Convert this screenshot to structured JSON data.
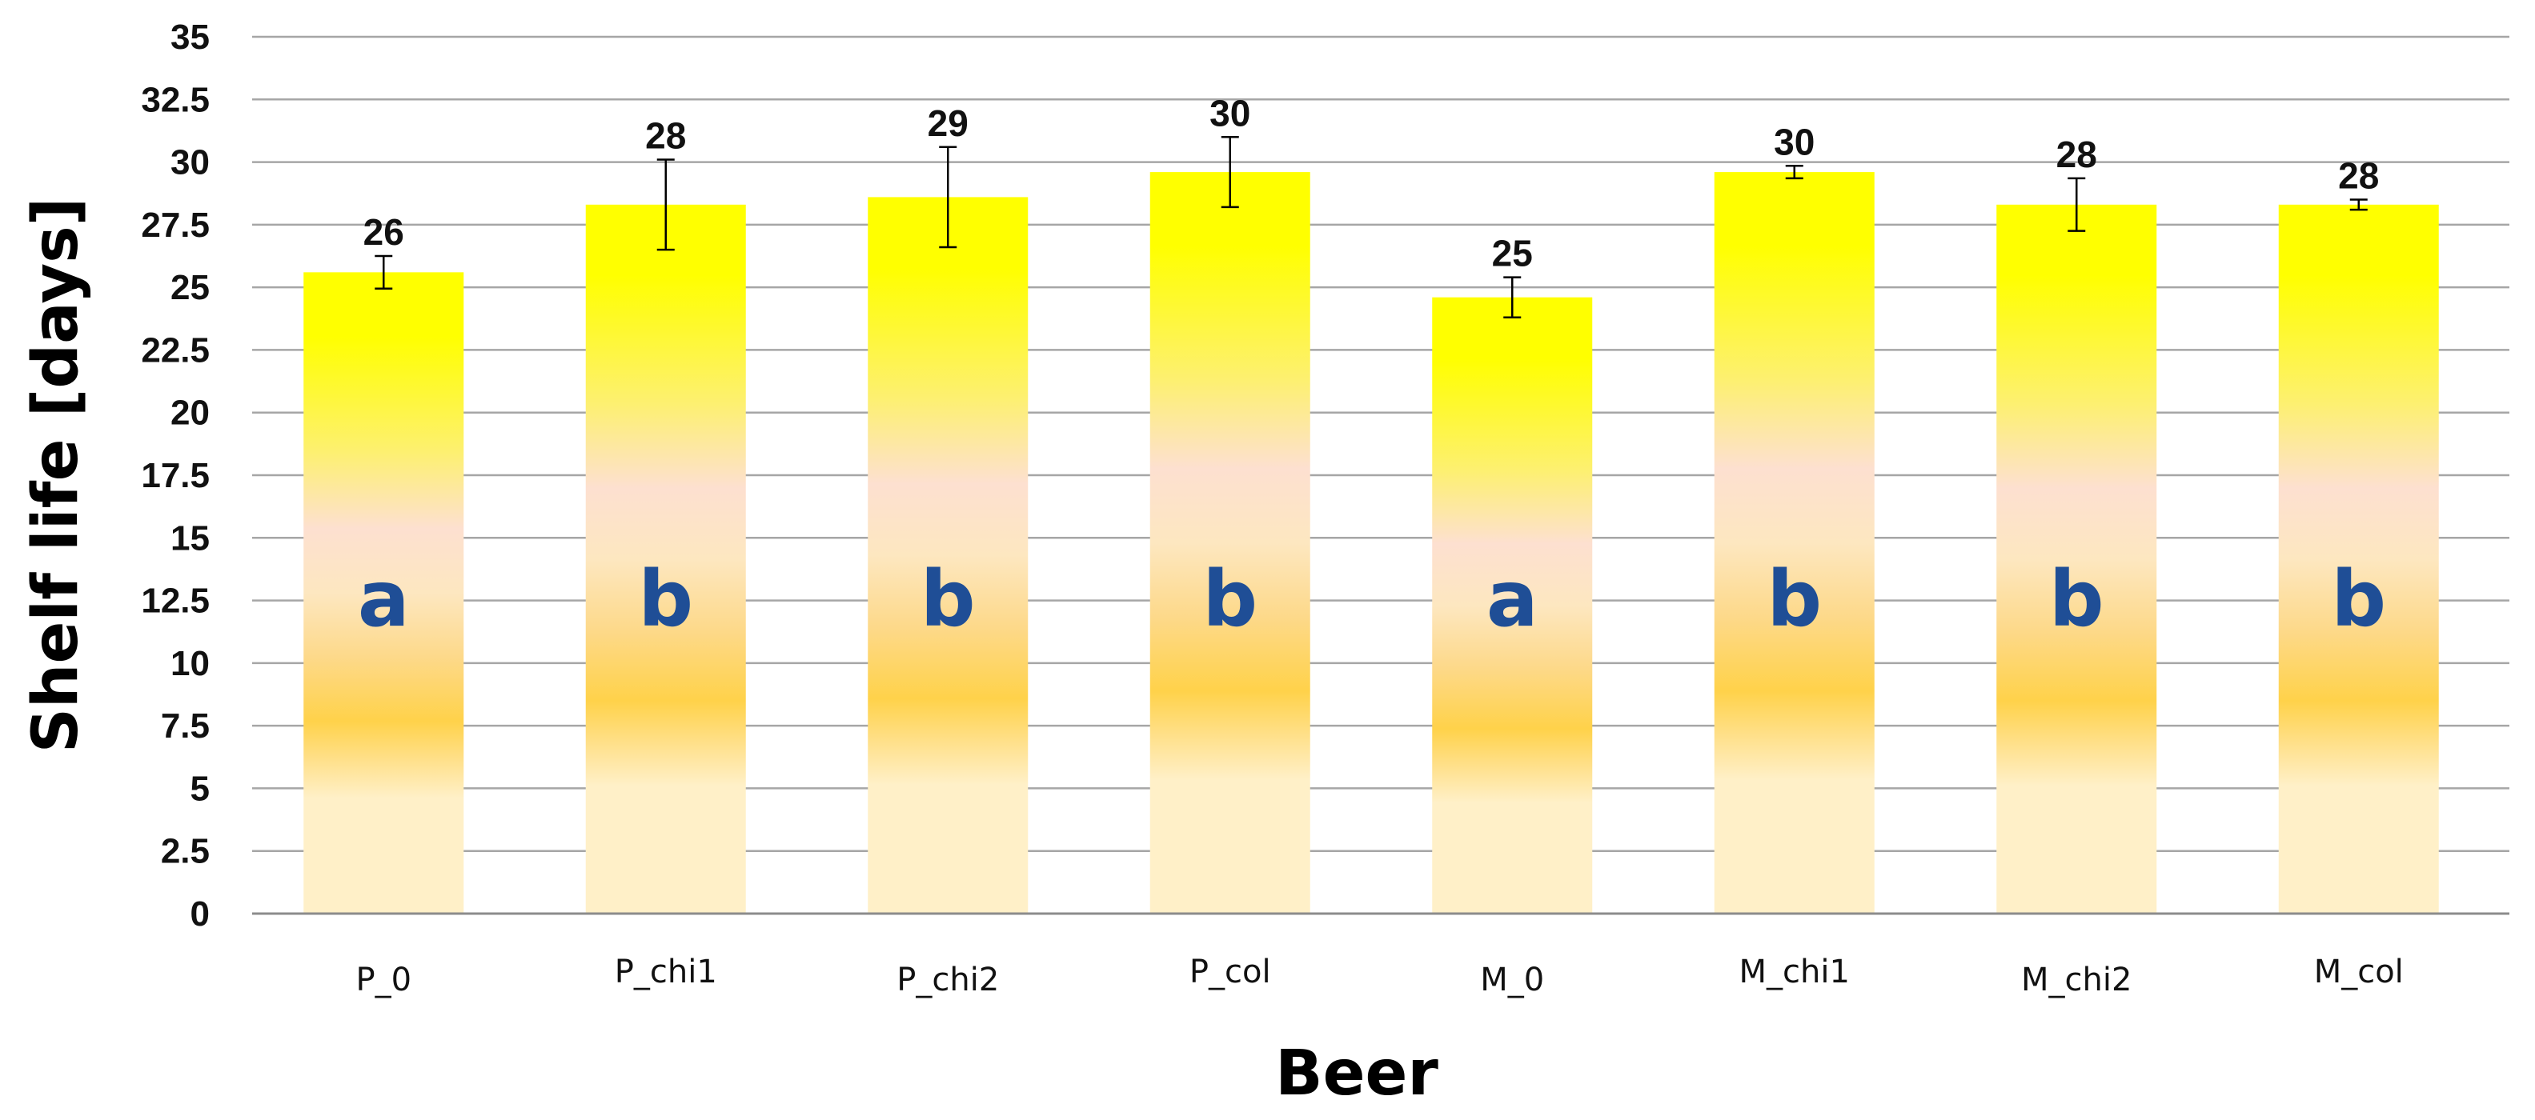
{
  "chart_data": {
    "type": "bar",
    "xlabel": "Beer",
    "ylabel": "Shelf life [days]",
    "ylim": [
      0,
      35
    ],
    "ytick_step": 2.5,
    "yticks": [
      "0",
      "2.5",
      "5",
      "7.5",
      "10",
      "12.5",
      "15",
      "17.5",
      "20",
      "22.5",
      "25",
      "27.5",
      "30",
      "32.5",
      "35"
    ],
    "grid": true,
    "categories": [
      "P_0",
      "P_chi1",
      "P_chi2",
      "P_col",
      "M_0",
      "M_chi1",
      "M_chi2",
      "M_col"
    ],
    "values": [
      25.6,
      28.3,
      28.6,
      29.6,
      24.6,
      29.6,
      28.3,
      28.3
    ],
    "errors": [
      0.65,
      1.8,
      2.0,
      1.4,
      0.8,
      0.25,
      1.05,
      0.2
    ],
    "data_labels": [
      "26",
      "28",
      "29",
      "30",
      "25",
      "30",
      "28",
      "28"
    ],
    "significance_letters": [
      "a",
      "b",
      "b",
      "b",
      "a",
      "b",
      "b",
      "b"
    ],
    "colors": {
      "bar_top": "#ffff00",
      "bar_mid": "#fde5cf",
      "bar_amber": "#ffd24a",
      "bar_bottom": "#fff0c8",
      "letters": "#1f4e96",
      "grid": "#a6a6a6"
    }
  }
}
